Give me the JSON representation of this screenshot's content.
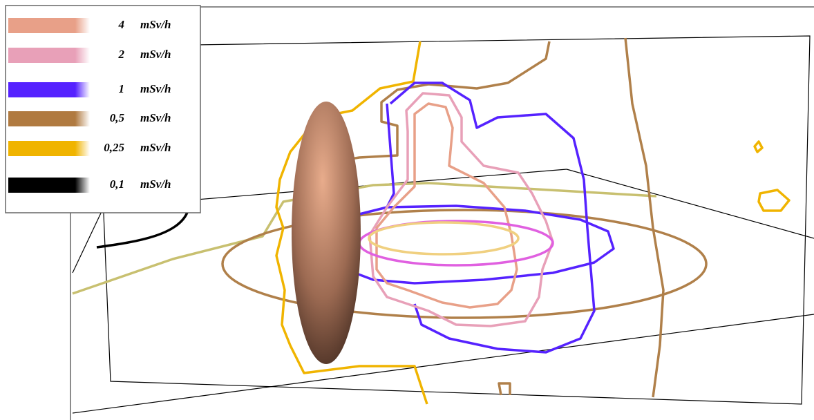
{
  "legend": {
    "items": [
      {
        "value": "4",
        "unit": "mSv/h",
        "color": "#e8a088"
      },
      {
        "value": "2",
        "unit": "mSv/h",
        "color": "#e8a0b8"
      },
      {
        "value": "1",
        "unit": "mSv/h",
        "color": "#5522ff"
      },
      {
        "value": "0,5",
        "unit": "mSv/h",
        "color": "#b07a40"
      },
      {
        "value": "0,25",
        "unit": "mSv/h",
        "color": "#f0b400"
      },
      {
        "value": "0,1",
        "unit": "mSv/h",
        "color": "#000000"
      }
    ]
  }
}
